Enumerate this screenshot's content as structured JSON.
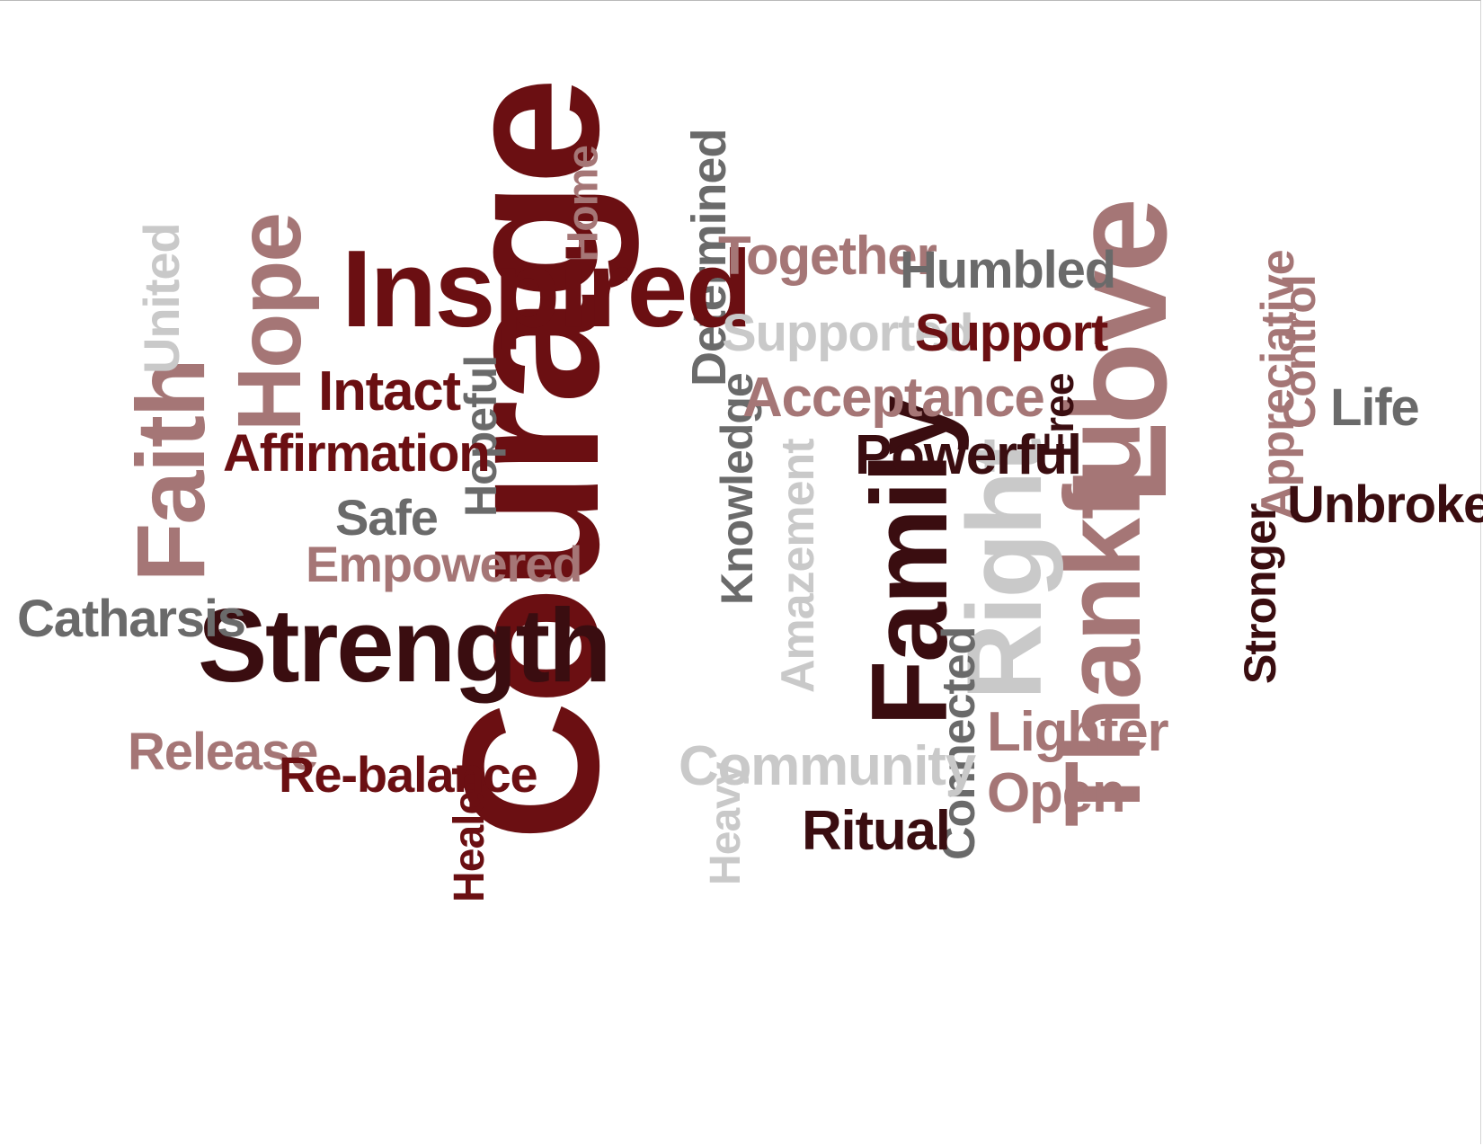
{
  "words": {
    "courage": "Courage",
    "inspired": "Inspired",
    "strength": "Strength",
    "love": "Love",
    "thankful": "Thankful",
    "family": "Family",
    "right": "Right",
    "faith": "Faith",
    "hope": "Hope",
    "united": "United",
    "intact": "Intact",
    "affirmation": "Affirmation",
    "hopeful": "Hopeful",
    "safe": "Safe",
    "empowered": "Empowered",
    "catharsis": "Catharsis",
    "release": "Release",
    "rebalance": "Re-balance",
    "healed": "Healed",
    "home": "Home",
    "determined": "Determined",
    "together": "Together",
    "humbled": "Humbled",
    "supported": "Supported",
    "support": "Support",
    "acceptance": "Acceptance",
    "free": "Free",
    "powerful": "Powerful",
    "knowledge": "Knowledge",
    "amazement": "Amazement",
    "community": "Community",
    "heavy": "Heavy",
    "ritual": "Ritual",
    "connected": "Connected",
    "lighter": "Lighter",
    "open": "Open",
    "appreciative": "Appreciative",
    "control": "Control",
    "life": "Life",
    "unbroken": "Unbroken",
    "stronger": "Stronger"
  }
}
